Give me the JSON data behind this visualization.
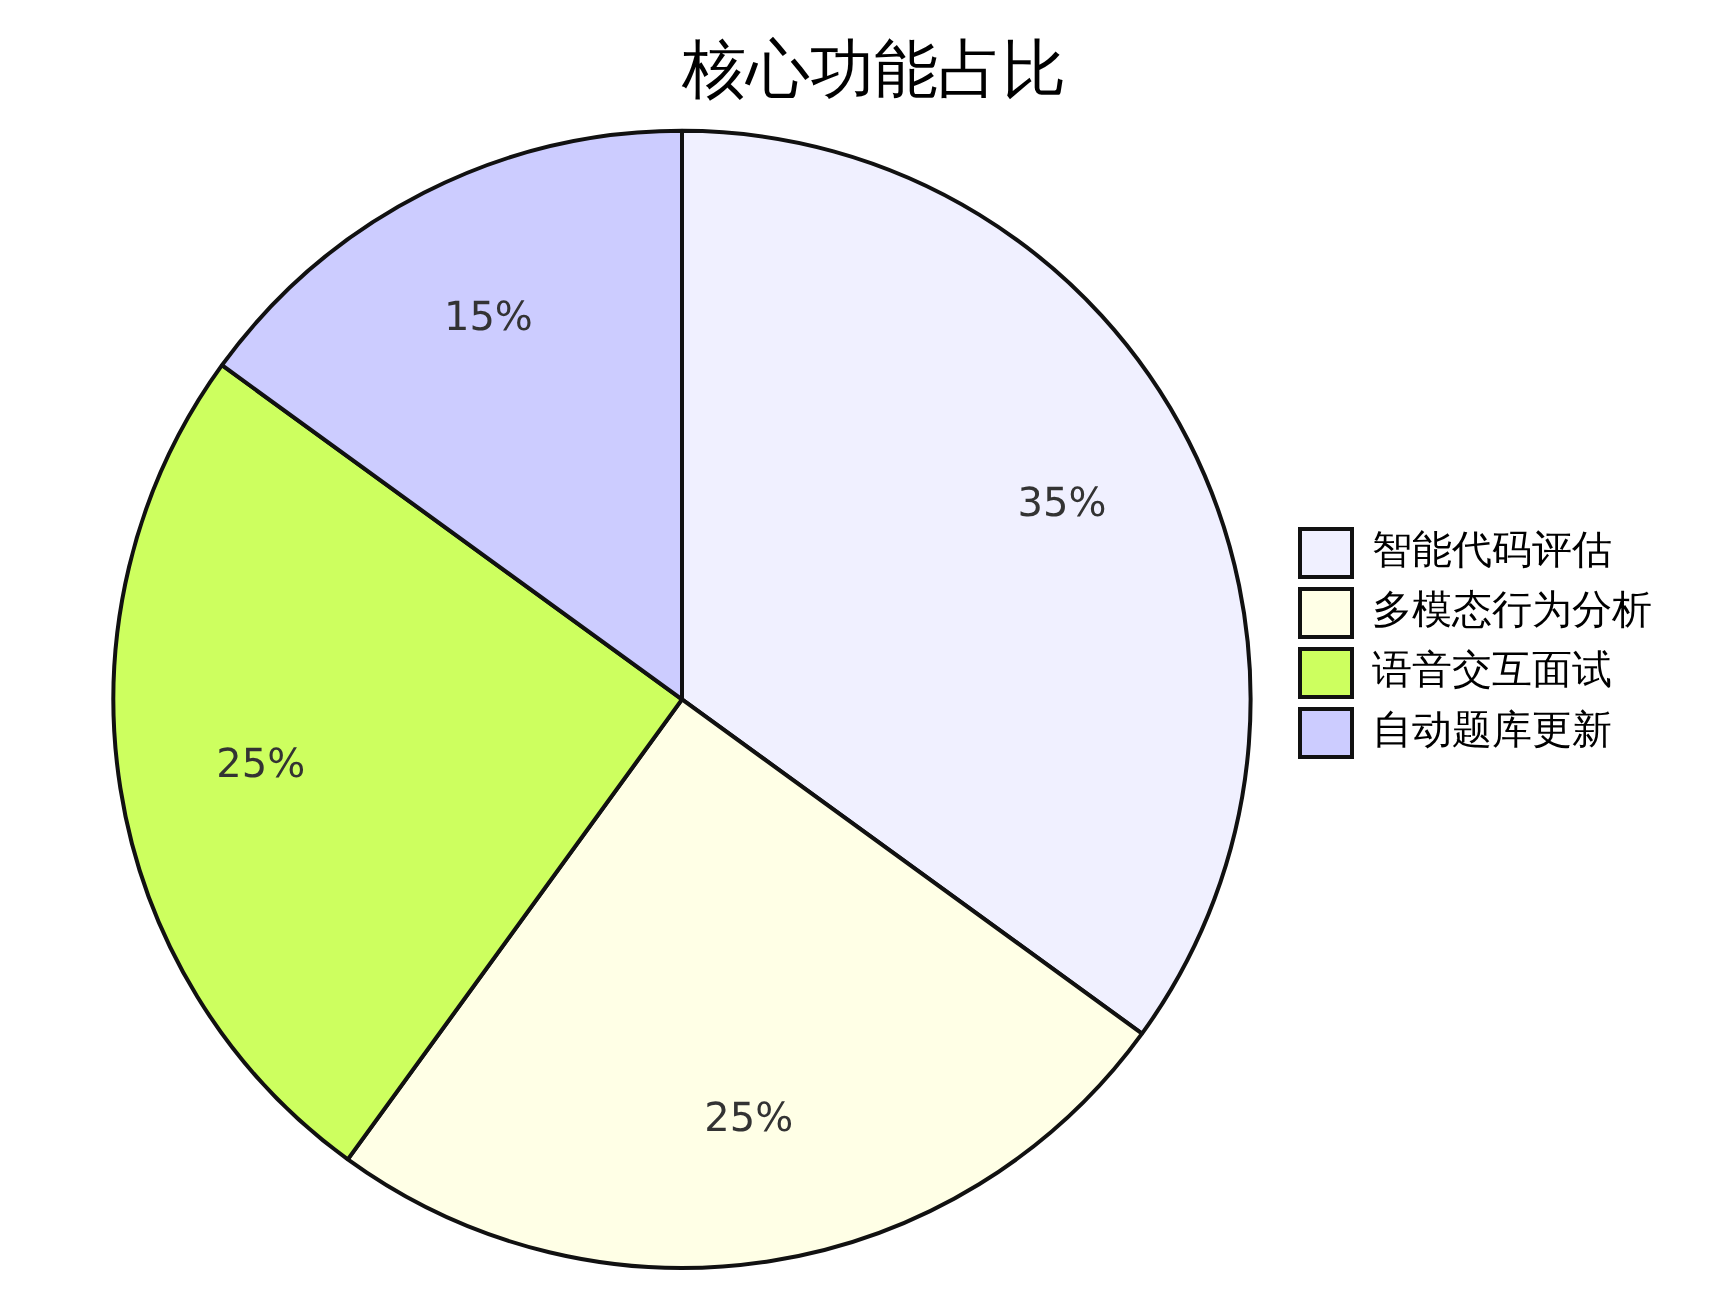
{
  "chart_data": {
    "type": "pie",
    "title": "核心功能占比",
    "categories": [
      "智能代码评估",
      "多模态行为分析",
      "语音交互面试",
      "自动题库更新"
    ],
    "values": [
      35,
      25,
      25,
      15
    ],
    "colors": [
      "#f0f0ff",
      "#ffffe6",
      "#cdff5f",
      "#ccccff"
    ],
    "value_labels": [
      "35%",
      "25%",
      "25%",
      "15%"
    ],
    "legend": "right"
  }
}
